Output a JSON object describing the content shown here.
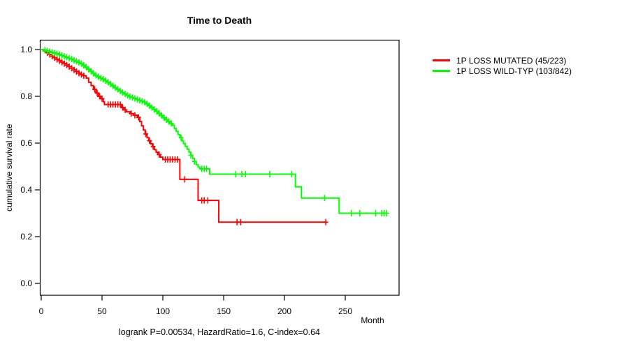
{
  "title": "Time to Death",
  "footer": "logrank P=0.00534, HazardRatio=1.6, C-index=0.64",
  "axes": {
    "x_label": "Month",
    "y_label": "cumulative survival rate",
    "x_ticks": [
      0,
      50,
      100,
      150,
      200,
      250
    ],
    "y_ticks": [
      0.0,
      0.2,
      0.4,
      0.6,
      0.8,
      1.0
    ]
  },
  "legend": {
    "items": [
      {
        "label": "1P LOSS MUTATED (45/223)",
        "color": "#FF0000"
      },
      {
        "label": "1P LOSS WILD-TYP (103/842)",
        "color": "#00FF00"
      }
    ]
  },
  "colors": {
    "mutated": "#FF0000",
    "wildtype": "#00FF00",
    "axis": "#000000",
    "background": "#FFFFFF"
  },
  "chart_data": {
    "type": "line",
    "subtype": "kaplan-meier-step",
    "title": "Time to Death",
    "xlabel": "Month",
    "ylabel": "cumulative survival rate",
    "xlim": [
      0,
      295
    ],
    "ylim": [
      0.0,
      1.0
    ],
    "xticks": [
      0,
      50,
      100,
      150,
      200,
      250
    ],
    "yticks": [
      0.0,
      0.2,
      0.4,
      0.6,
      0.8,
      1.0
    ],
    "grid": false,
    "legend_position": "right-outside",
    "annotation": "logrank P=0.00534, HazardRatio=1.6, C-index=0.64",
    "series": [
      {
        "name": "1P LOSS MUTATED (45/223)",
        "color": "#FF0000",
        "end_month": 234,
        "steps": [
          [
            0,
            1.0
          ],
          [
            1.5,
            0.995
          ],
          [
            3,
            0.991
          ],
          [
            5,
            0.986
          ],
          [
            7,
            0.979
          ],
          [
            9,
            0.972
          ],
          [
            11,
            0.965
          ],
          [
            13,
            0.958
          ],
          [
            15,
            0.952
          ],
          [
            17,
            0.946
          ],
          [
            19,
            0.94
          ],
          [
            21,
            0.934
          ],
          [
            23,
            0.927
          ],
          [
            25,
            0.92
          ],
          [
            27,
            0.913
          ],
          [
            29,
            0.906
          ],
          [
            31,
            0.899
          ],
          [
            33,
            0.893
          ],
          [
            35,
            0.888
          ],
          [
            37,
            0.878
          ],
          [
            39,
            0.86
          ],
          [
            41,
            0.846
          ],
          [
            43,
            0.83
          ],
          [
            45,
            0.814
          ],
          [
            47,
            0.8
          ],
          [
            49,
            0.79
          ],
          [
            51,
            0.777
          ],
          [
            52,
            0.765
          ],
          [
            66,
            0.752
          ],
          [
            68,
            0.742
          ],
          [
            70,
            0.734
          ],
          [
            73,
            0.726
          ],
          [
            76,
            0.719
          ],
          [
            79,
            0.71
          ],
          [
            81,
            0.692
          ],
          [
            82.5,
            0.674
          ],
          [
            84,
            0.656
          ],
          [
            85.5,
            0.639
          ],
          [
            87,
            0.623
          ],
          [
            88.5,
            0.61
          ],
          [
            90,
            0.597
          ],
          [
            91.5,
            0.585
          ],
          [
            93,
            0.572
          ],
          [
            94.5,
            0.561
          ],
          [
            96,
            0.551
          ],
          [
            98,
            0.54
          ],
          [
            100,
            0.53
          ],
          [
            114,
            0.445
          ],
          [
            129,
            0.355
          ],
          [
            146,
            0.262
          ]
        ],
        "censors": [
          5,
          7,
          9,
          11,
          13,
          15,
          17,
          19,
          21,
          23,
          25,
          27,
          29,
          31,
          33,
          35,
          44,
          46,
          48,
          50,
          55,
          57,
          59,
          61,
          63,
          65,
          67,
          69,
          74,
          77,
          80,
          86,
          89,
          92,
          97,
          102,
          104,
          106,
          108,
          110,
          112,
          118,
          132,
          134,
          137,
          161,
          164,
          234
        ]
      },
      {
        "name": "1P LOSS WILD-TYP (103/842)",
        "color": "#00FF00",
        "end_month": 284,
        "steps": [
          [
            0,
            1.0
          ],
          [
            2,
            0.997
          ],
          [
            4,
            0.994
          ],
          [
            6,
            0.991
          ],
          [
            8,
            0.988
          ],
          [
            10,
            0.985
          ],
          [
            12,
            0.982
          ],
          [
            14,
            0.979
          ],
          [
            16,
            0.975
          ],
          [
            18,
            0.971
          ],
          [
            20,
            0.967
          ],
          [
            22,
            0.963
          ],
          [
            24,
            0.959
          ],
          [
            26,
            0.954
          ],
          [
            28,
            0.95
          ],
          [
            30,
            0.945
          ],
          [
            32,
            0.94
          ],
          [
            34,
            0.933
          ],
          [
            36,
            0.925
          ],
          [
            38,
            0.916
          ],
          [
            40,
            0.907
          ],
          [
            42,
            0.898
          ],
          [
            44,
            0.89
          ],
          [
            46,
            0.884
          ],
          [
            48,
            0.878
          ],
          [
            50,
            0.873
          ],
          [
            52,
            0.867
          ],
          [
            54,
            0.86
          ],
          [
            56,
            0.853
          ],
          [
            58,
            0.845
          ],
          [
            60,
            0.837
          ],
          [
            62,
            0.83
          ],
          [
            64,
            0.823
          ],
          [
            66,
            0.816
          ],
          [
            68,
            0.81
          ],
          [
            70,
            0.804
          ],
          [
            72,
            0.799
          ],
          [
            74,
            0.795
          ],
          [
            76,
            0.791
          ],
          [
            78,
            0.787
          ],
          [
            80,
            0.783
          ],
          [
            82,
            0.779
          ],
          [
            84,
            0.775
          ],
          [
            86,
            0.768
          ],
          [
            88,
            0.76
          ],
          [
            90,
            0.752
          ],
          [
            92,
            0.744
          ],
          [
            94,
            0.736
          ],
          [
            96,
            0.727
          ],
          [
            98,
            0.718
          ],
          [
            100,
            0.709
          ],
          [
            102,
            0.7
          ],
          [
            104,
            0.692
          ],
          [
            106,
            0.684
          ],
          [
            108,
            0.676
          ],
          [
            109.5,
            0.663
          ],
          [
            111,
            0.65
          ],
          [
            112.5,
            0.637
          ],
          [
            114,
            0.623
          ],
          [
            115.5,
            0.61
          ],
          [
            117,
            0.598
          ],
          [
            118.5,
            0.586
          ],
          [
            120,
            0.574
          ],
          [
            121.5,
            0.561
          ],
          [
            123,
            0.548
          ],
          [
            124.5,
            0.535
          ],
          [
            126,
            0.521
          ],
          [
            127.5,
            0.508
          ],
          [
            129,
            0.497
          ],
          [
            130.5,
            0.49
          ],
          [
            138.5,
            0.467
          ],
          [
            209,
            0.413
          ],
          [
            214,
            0.365
          ],
          [
            245,
            0.3
          ]
        ],
        "censors": [
          3,
          5,
          7,
          9,
          11,
          13,
          15,
          17,
          19,
          21,
          23,
          25,
          27,
          29,
          31,
          33,
          35,
          37,
          39,
          41,
          43,
          45,
          47,
          49,
          51,
          53,
          55,
          57,
          59,
          61,
          63,
          65,
          67,
          69,
          71,
          73,
          75,
          77,
          79,
          81,
          83,
          85,
          87,
          89,
          91,
          93,
          95,
          97,
          99,
          101,
          103,
          105,
          107,
          115,
          123,
          126,
          132,
          134,
          136,
          160,
          165,
          168,
          188,
          206,
          233,
          255,
          262,
          275,
          280,
          282,
          284
        ]
      }
    ]
  }
}
